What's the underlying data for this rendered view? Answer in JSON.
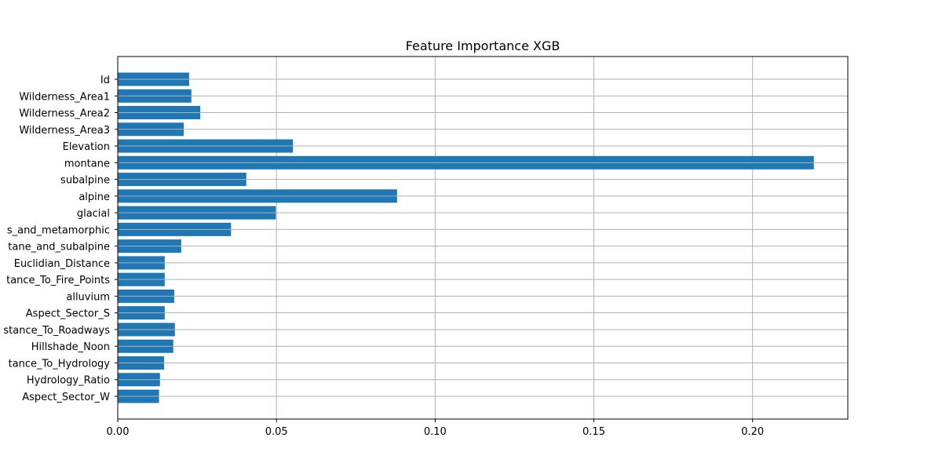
{
  "chart_data": {
    "type": "bar",
    "orientation": "horizontal",
    "title": "Feature Importance XGB",
    "xlabel": "",
    "ylabel": "",
    "categories": [
      "Id",
      "Wilderness_Area1",
      "Wilderness_Area2",
      "Wilderness_Area3",
      "Elevation",
      "montane",
      "subalpine",
      "alpine",
      "glacial",
      "s_and_metamorphic",
      "tane_and_subalpine",
      "Euclidian_Distance",
      "tance_To_Fire_Points",
      "alluvium",
      "Aspect_Sector_S",
      "stance_To_Roadways",
      "Hillshade_Noon",
      "tance_To_Hydrology",
      "Hydrology_Ratio",
      "Aspect_Sector_W"
    ],
    "values": [
      0.0225,
      0.0232,
      0.026,
      0.0208,
      0.0552,
      0.2193,
      0.0405,
      0.088,
      0.0498,
      0.0357,
      0.02,
      0.0148,
      0.0148,
      0.0178,
      0.0148,
      0.018,
      0.0175,
      0.0146,
      0.0133,
      0.013
    ],
    "xlim": [
      0.0,
      0.23
    ],
    "xticks": [
      0.0,
      0.05,
      0.1,
      0.15,
      0.2
    ],
    "xtick_labels": [
      "0.00",
      "0.05",
      "0.10",
      "0.15",
      "0.20"
    ],
    "grid": true,
    "bar_color": "#1f77b4",
    "grid_color": "#b0b0b0"
  }
}
